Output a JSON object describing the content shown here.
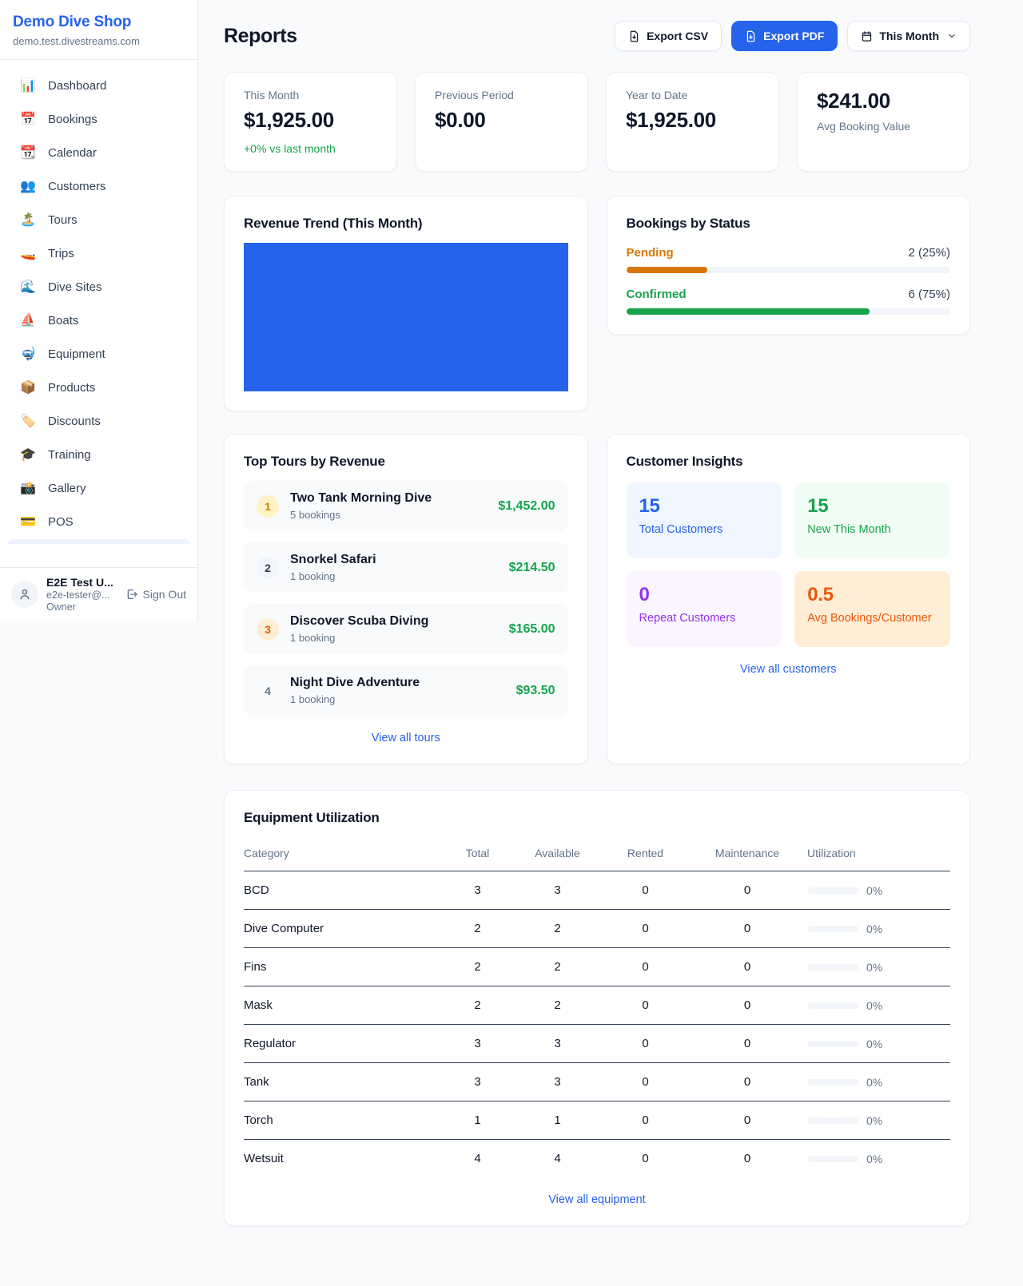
{
  "app": {
    "name": "Demo Dive Shop",
    "domain": "demo.test.divestreams.com"
  },
  "colors": {
    "accent_blue": "#2563eb",
    "success_green": "#16a34a",
    "pending_orange": "#d97706",
    "bronze_orange": "#ea580c",
    "purple": "#9333ea",
    "background": "#f8fafc"
  },
  "sidebar": {
    "items": [
      {
        "icon": "📊",
        "label": "Dashboard"
      },
      {
        "icon": "📅",
        "label": "Bookings"
      },
      {
        "icon": "📆",
        "label": "Calendar"
      },
      {
        "icon": "👥",
        "label": "Customers"
      },
      {
        "icon": "🏝️",
        "label": "Tours"
      },
      {
        "icon": "🚤",
        "label": "Trips"
      },
      {
        "icon": "🌊",
        "label": "Dive Sites"
      },
      {
        "icon": "⛵",
        "label": "Boats"
      },
      {
        "icon": "🤿",
        "label": "Equipment"
      },
      {
        "icon": "📦",
        "label": "Products"
      },
      {
        "icon": "🏷️",
        "label": "Discounts"
      },
      {
        "icon": "🎓",
        "label": "Training"
      },
      {
        "icon": "📸",
        "label": "Gallery"
      },
      {
        "icon": "💳",
        "label": "POS"
      }
    ],
    "user": {
      "name": "E2E Test U...",
      "email": "e2e-tester@...",
      "role": "Owner",
      "sign_out": "Sign Out"
    }
  },
  "header": {
    "title": "Reports",
    "export_csv": "Export CSV",
    "export_pdf": "Export PDF",
    "period": "This Month"
  },
  "stats": [
    {
      "label": "This Month",
      "value": "$1,925.00",
      "delta": "+0% vs last month"
    },
    {
      "label": "Previous Period",
      "value": "$0.00"
    },
    {
      "label": "Year to Date",
      "value": "$1,925.00"
    },
    {
      "label": "Avg Booking Value",
      "value": "$241.00"
    }
  ],
  "revenue_trend": {
    "title": "Revenue Trend (This Month)"
  },
  "bookings_by_status": {
    "title": "Bookings by Status",
    "rows": [
      {
        "label": "Pending",
        "value": "2 (25%)",
        "pct": "25%"
      },
      {
        "label": "Confirmed",
        "value": "6 (75%)",
        "pct": "75%"
      }
    ]
  },
  "top_tours": {
    "title": "Top Tours by Revenue",
    "link": "View all tours",
    "items": [
      {
        "rank": "1",
        "name": "Two Tank Morning Dive",
        "bookings": "5 bookings",
        "amount": "$1,452.00"
      },
      {
        "rank": "2",
        "name": "Snorkel Safari",
        "bookings": "1 booking",
        "amount": "$214.50"
      },
      {
        "rank": "3",
        "name": "Discover Scuba Diving",
        "bookings": "1 booking",
        "amount": "$165.00"
      },
      {
        "rank": "4",
        "name": "Night Dive Adventure",
        "bookings": "1 booking",
        "amount": "$93.50"
      }
    ]
  },
  "customer_insights": {
    "title": "Customer Insights",
    "link": "View all customers",
    "tiles": [
      {
        "value": "15",
        "label": "Total Customers"
      },
      {
        "value": "15",
        "label": "New This Month"
      },
      {
        "value": "0",
        "label": "Repeat Customers"
      },
      {
        "value": "0.5",
        "label": "Avg Bookings/Customer"
      }
    ]
  },
  "equipment": {
    "title": "Equipment Utilization",
    "link": "View all equipment",
    "columns": [
      "Category",
      "Total",
      "Available",
      "Rented",
      "Maintenance",
      "Utilization"
    ],
    "rows": [
      {
        "category": "BCD",
        "total": "3",
        "available": "3",
        "rented": "0",
        "maintenance": "0",
        "utilization": "0%",
        "util_width": "0%"
      },
      {
        "category": "Dive Computer",
        "total": "2",
        "available": "2",
        "rented": "0",
        "maintenance": "0",
        "utilization": "0%",
        "util_width": "0%"
      },
      {
        "category": "Fins",
        "total": "2",
        "available": "2",
        "rented": "0",
        "maintenance": "0",
        "utilization": "0%",
        "util_width": "0%"
      },
      {
        "category": "Mask",
        "total": "2",
        "available": "2",
        "rented": "0",
        "maintenance": "0",
        "utilization": "0%",
        "util_width": "0%"
      },
      {
        "category": "Regulator",
        "total": "3",
        "available": "3",
        "rented": "0",
        "maintenance": "0",
        "utilization": "0%",
        "util_width": "0%"
      },
      {
        "category": "Tank",
        "total": "3",
        "available": "3",
        "rented": "0",
        "maintenance": "0",
        "utilization": "0%",
        "util_width": "0%"
      },
      {
        "category": "Torch",
        "total": "1",
        "available": "1",
        "rented": "0",
        "maintenance": "0",
        "utilization": "0%",
        "util_width": "0%"
      },
      {
        "category": "Wetsuit",
        "total": "4",
        "available": "4",
        "rented": "0",
        "maintenance": "0",
        "utilization": "0%",
        "util_width": "0%"
      }
    ]
  },
  "chart_data": [
    {
      "type": "bar",
      "title": "Revenue Trend (This Month)",
      "categories": [
        "This Month"
      ],
      "values": [
        1925.0
      ],
      "xlabel": "",
      "ylabel": "",
      "legend": false,
      "grid": false,
      "axes_visible": false,
      "bar_color": "#2563eb",
      "note": "single bar fills the entire plot area"
    },
    {
      "type": "bar",
      "title": "Bookings by Status",
      "orientation": "horizontal",
      "categories": [
        "Pending",
        "Confirmed"
      ],
      "values": [
        2,
        6
      ],
      "percentages": [
        25,
        75
      ],
      "colors": [
        "#d97706",
        "#16a34a"
      ],
      "xlim": [
        0,
        100
      ]
    }
  ]
}
